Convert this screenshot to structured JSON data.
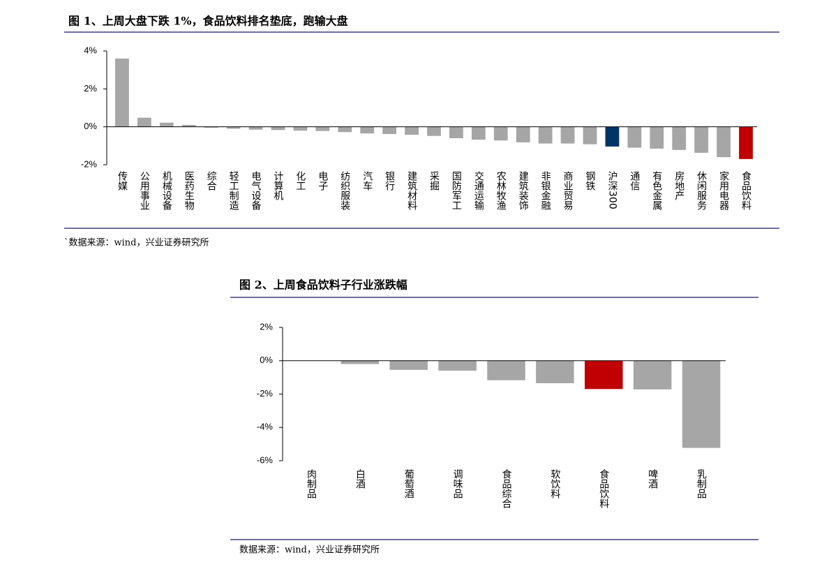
{
  "chart_data": [
    {
      "type": "bar",
      "title": "图 1、上周大盘下跌 1%，食品饮料排名垫底，跑输大盘",
      "categories": [
        "传媒",
        "公用事业",
        "机械设备",
        "医药生物",
        "综合",
        "轻工制造",
        "电气设备",
        "计算机",
        "化工",
        "电子",
        "纺织服装",
        "汽车",
        "银行",
        "建筑材料",
        "采掘",
        "国防军工",
        "交通运输",
        "农林牧渔",
        "建筑装饰",
        "非银金融",
        "商业贸易",
        "钢铁",
        "沪深300",
        "通信",
        "有色金属",
        "房地产",
        "休闲服务",
        "家用电器",
        "食品饮料"
      ],
      "values": [
        3.6,
        0.48,
        0.22,
        0.1,
        -0.05,
        -0.1,
        -0.15,
        -0.17,
        -0.2,
        -0.22,
        -0.28,
        -0.35,
        -0.38,
        -0.42,
        -0.48,
        -0.6,
        -0.68,
        -0.72,
        -0.82,
        -0.88,
        -0.88,
        -0.92,
        -1.04,
        -1.1,
        -1.15,
        -1.22,
        -1.37,
        -1.6,
        -1.7
      ],
      "colors": [
        "#a6a6a6",
        "#a6a6a6",
        "#a6a6a6",
        "#a6a6a6",
        "#a6a6a6",
        "#a6a6a6",
        "#a6a6a6",
        "#a6a6a6",
        "#a6a6a6",
        "#a6a6a6",
        "#a6a6a6",
        "#a6a6a6",
        "#a6a6a6",
        "#a6a6a6",
        "#a6a6a6",
        "#a6a6a6",
        "#a6a6a6",
        "#a6a6a6",
        "#a6a6a6",
        "#a6a6a6",
        "#a6a6a6",
        "#a6a6a6",
        "#003366",
        "#a6a6a6",
        "#a6a6a6",
        "#a6a6a6",
        "#a6a6a6",
        "#a6a6a6",
        "#c00000"
      ],
      "ylim": [
        -2,
        4
      ],
      "yticks": [
        {
          "value": -2,
          "label": "-2%"
        },
        {
          "value": 0,
          "label": "0%"
        },
        {
          "value": 2,
          "label": "2%"
        },
        {
          "value": 4,
          "label": "4%"
        }
      ],
      "source": "`数据来源：wind，兴业证券研究所"
    },
    {
      "type": "bar",
      "title": "图 2、上周食品饮料子行业涨跌幅",
      "categories": [
        "肉制品",
        "白酒",
        "葡萄酒",
        "调味品",
        "食品综合",
        "软饮料",
        "食品饮料",
        "啤酒",
        "乳制品"
      ],
      "values": [
        0,
        -0.2,
        -0.55,
        -0.6,
        -1.17,
        -1.35,
        -1.7,
        -1.72,
        -5.23
      ],
      "colors": [
        "#a6a6a6",
        "#a6a6a6",
        "#a6a6a6",
        "#a6a6a6",
        "#a6a6a6",
        "#a6a6a6",
        "#c00000",
        "#a6a6a6",
        "#a6a6a6"
      ],
      "ylim": [
        -6,
        2
      ],
      "yticks": [
        {
          "value": -6,
          "label": "-6%"
        },
        {
          "value": -4,
          "label": "-4%"
        },
        {
          "value": -2,
          "label": "-2%"
        },
        {
          "value": 0,
          "label": "0%"
        },
        {
          "value": 2,
          "label": "2%"
        }
      ],
      "source": "数据来源：wind，兴业证券研究所"
    }
  ]
}
